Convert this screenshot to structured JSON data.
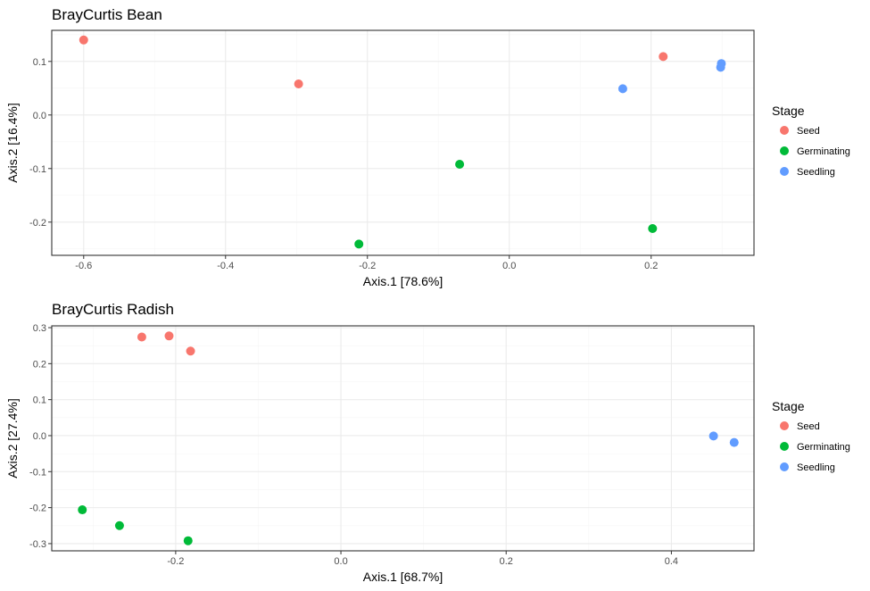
{
  "colors": {
    "Seed": "#F8766D",
    "Germinating": "#00BA38",
    "Seedling": "#619CFF"
  },
  "chart_data": [
    {
      "type": "scatter",
      "title": "BrayCurtis Bean",
      "xlabel": "Axis.1   [78.6%]",
      "ylabel": "Axis.2   [16.4%]",
      "xlim": [
        -0.645,
        0.345
      ],
      "ylim": [
        -0.262,
        0.158
      ],
      "xticks": [
        -0.6,
        -0.4,
        -0.2,
        0.0,
        0.2
      ],
      "xtick_labels": [
        "-0.6",
        "-0.4",
        "-0.2",
        "0.0",
        "0.2"
      ],
      "yticks": [
        -0.2,
        -0.1,
        0.0,
        0.1
      ],
      "ytick_labels": [
        "-0.2",
        "-0.1",
        "0.0",
        "0.1"
      ],
      "grid": true,
      "legend": {
        "title": "Stage",
        "position": "right",
        "entries": [
          "Seed",
          "Germinating",
          "Seedling"
        ]
      },
      "series": [
        {
          "name": "Seed",
          "points": [
            [
              -0.6,
              0.14
            ],
            [
              -0.297,
              0.058
            ],
            [
              0.217,
              0.109
            ]
          ]
        },
        {
          "name": "Germinating",
          "points": [
            [
              -0.07,
              -0.092
            ],
            [
              -0.212,
              -0.241
            ],
            [
              0.202,
              -0.212
            ]
          ]
        },
        {
          "name": "Seedling",
          "points": [
            [
              0.16,
              0.049
            ],
            [
              0.299,
              0.096
            ],
            [
              0.298,
              0.089
            ]
          ]
        }
      ]
    },
    {
      "type": "scatter",
      "title": "BrayCurtis Radish",
      "xlabel": "Axis.1   [68.7%]",
      "ylabel": "Axis.2   [27.4%]",
      "xlim": [
        -0.35,
        0.5
      ],
      "ylim": [
        -0.32,
        0.305
      ],
      "xticks": [
        -0.2,
        0.0,
        0.2,
        0.4
      ],
      "xtick_labels": [
        "-0.2",
        "0.0",
        "0.2",
        "0.4"
      ],
      "yticks": [
        -0.3,
        -0.2,
        -0.1,
        0.0,
        0.1,
        0.2,
        0.3
      ],
      "ytick_labels": [
        "-0.3",
        "-0.2",
        "-0.1",
        "0.0",
        "0.1",
        "0.2",
        "0.3"
      ],
      "grid": true,
      "legend": {
        "title": "Stage",
        "position": "right",
        "entries": [
          "Seed",
          "Germinating",
          "Seedling"
        ]
      },
      "series": [
        {
          "name": "Seed",
          "points": [
            [
              -0.241,
              0.274
            ],
            [
              -0.208,
              0.277
            ],
            [
              -0.182,
              0.235
            ]
          ]
        },
        {
          "name": "Germinating",
          "points": [
            [
              -0.313,
              -0.206
            ],
            [
              -0.268,
              -0.25
            ],
            [
              -0.185,
              -0.292
            ]
          ]
        },
        {
          "name": "Seedling",
          "points": [
            [
              0.451,
              -0.001
            ],
            [
              0.476,
              -0.019
            ]
          ]
        }
      ]
    }
  ]
}
